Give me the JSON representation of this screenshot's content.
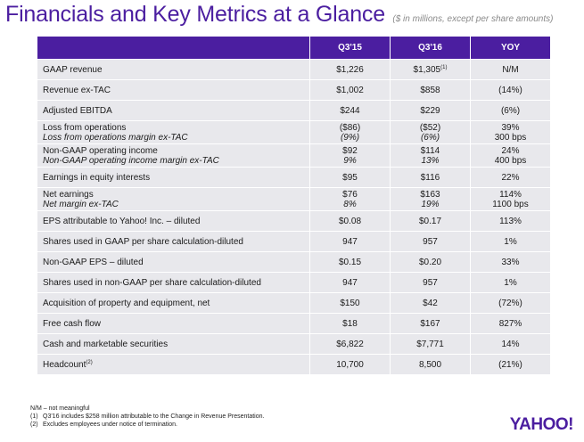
{
  "title": "Financials and Key Metrics at a Glance",
  "subtitle": "($ in millions, except per share amounts)",
  "headers": [
    "Q3'15",
    "Q3'16",
    "YOY"
  ],
  "rows": [
    {
      "l1": "GAAP revenue",
      "l2": "",
      "q15_1": "$1,226",
      "q15_2": "",
      "q16_1": "$1,305",
      "q16_sup": "(1)",
      "q16_2": "",
      "yoy_1": "N/M",
      "yoy_2": ""
    },
    {
      "l1": "Revenue ex-TAC",
      "l2": "",
      "q15_1": "$1,002",
      "q15_2": "",
      "q16_1": "$858",
      "q16_sup": "",
      "q16_2": "",
      "yoy_1": "(14%)",
      "yoy_2": ""
    },
    {
      "l1": "Adjusted EBITDA",
      "l2": "",
      "q15_1": "$244",
      "q15_2": "",
      "q16_1": "$229",
      "q16_sup": "",
      "q16_2": "",
      "yoy_1": "(6%)",
      "yoy_2": ""
    },
    {
      "l1": "Loss from operations",
      "l2": "Loss from operations margin ex-TAC",
      "q15_1": "($86)",
      "q15_2": "(9%)",
      "q16_1": "($52)",
      "q16_sup": "",
      "q16_2": "(6%)",
      "yoy_1": "39%",
      "yoy_2": "300 bps"
    },
    {
      "l1": "Non-GAAP operating income",
      "l2": "Non-GAAP operating income margin ex-TAC",
      "q15_1": "$92",
      "q15_2": "9%",
      "q16_1": "$114",
      "q16_sup": "",
      "q16_2": "13%",
      "yoy_1": "24%",
      "yoy_2": "400 bps"
    },
    {
      "l1": "Earnings in equity interests",
      "l2": "",
      "q15_1": "$95",
      "q15_2": "",
      "q16_1": "$116",
      "q16_sup": "",
      "q16_2": "",
      "yoy_1": "22%",
      "yoy_2": ""
    },
    {
      "l1": "Net earnings",
      "l2": "Net margin ex-TAC",
      "q15_1": "$76",
      "q15_2": "8%",
      "q16_1": "$163",
      "q16_sup": "",
      "q16_2": "19%",
      "yoy_1": "114%",
      "yoy_2": "1100 bps"
    },
    {
      "l1": "EPS attributable to Yahoo! Inc. – diluted",
      "l2": "",
      "q15_1": "$0.08",
      "q15_2": "",
      "q16_1": "$0.17",
      "q16_sup": "",
      "q16_2": "",
      "yoy_1": "113%",
      "yoy_2": ""
    },
    {
      "l1": "Shares used in GAAP per share calculation-diluted",
      "l2": "",
      "q15_1": "947",
      "q15_2": "",
      "q16_1": "957",
      "q16_sup": "",
      "q16_2": "",
      "yoy_1": "1%",
      "yoy_2": ""
    },
    {
      "l1": "Non-GAAP EPS – diluted",
      "l2": "",
      "q15_1": "$0.15",
      "q15_2": "",
      "q16_1": "$0.20",
      "q16_sup": "",
      "q16_2": "",
      "yoy_1": "33%",
      "yoy_2": ""
    },
    {
      "l1": "Shares used in non-GAAP per share calculation-diluted",
      "l2": "",
      "q15_1": "947",
      "q15_2": "",
      "q16_1": "957",
      "q16_sup": "",
      "q16_2": "",
      "yoy_1": "1%",
      "yoy_2": ""
    },
    {
      "l1": "Acquisition of property and equipment, net",
      "l2": "",
      "q15_1": "$150",
      "q15_2": "",
      "q16_1": "$42",
      "q16_sup": "",
      "q16_2": "",
      "yoy_1": "(72%)",
      "yoy_2": ""
    },
    {
      "l1": "Free cash flow",
      "l2": "",
      "q15_1": "$18",
      "q15_2": "",
      "q16_1": "$167",
      "q16_sup": "",
      "q16_2": "",
      "yoy_1": "827%",
      "yoy_2": ""
    },
    {
      "l1": "Cash and marketable securities",
      "l2": "",
      "q15_1": "$6,822",
      "q15_2": "",
      "q16_1": "$7,771",
      "q16_sup": "",
      "q16_2": "",
      "yoy_1": "14%",
      "yoy_2": ""
    },
    {
      "l1": "Headcount",
      "l1_sup": "(2)",
      "l2": "",
      "q15_1": "10,700",
      "q15_2": "",
      "q16_1": "8,500",
      "q16_sup": "",
      "q16_2": "",
      "yoy_1": "(21%)",
      "yoy_2": ""
    }
  ],
  "footnotes": {
    "nm": "N/M – not meaningful",
    "n1_num": "(1)",
    "n1_text": "Q3'16 includes $258 million attributable to the Change in Revenue Presentation.",
    "n2_num": "(2)",
    "n2_text": "Excludes employees under notice of termination."
  },
  "logo": "YAHOO!",
  "colors": {
    "brand": "#4b1ea0",
    "row_bg": "#e8e8ec"
  }
}
